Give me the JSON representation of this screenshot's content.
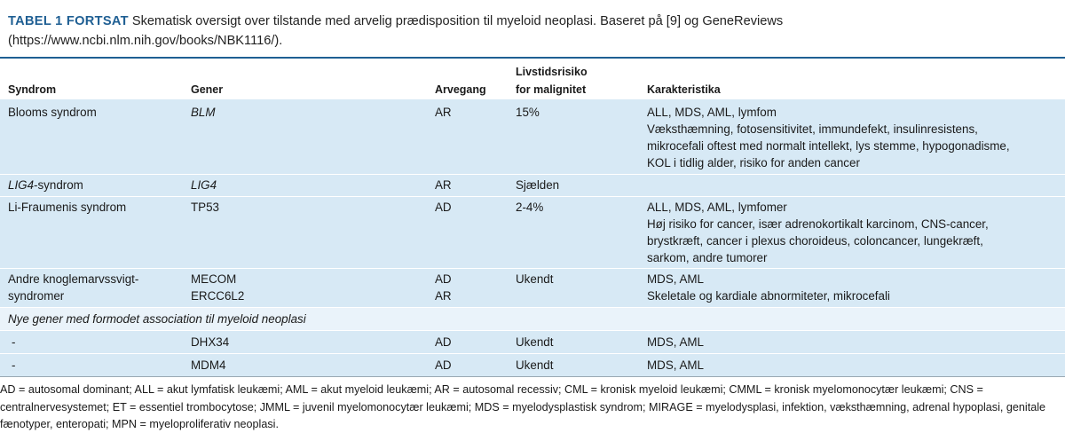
{
  "caption": {
    "tag": "TABEL 1 FORTSAT",
    "text": " Skematisk oversigt over tilstande med arvelig prædisposition til myeloid neoplasi. Baseret på [9] og GeneReviews (https://www.ncbi.nlm.nih.gov/books/NBK1116/)."
  },
  "headers": {
    "syndrom": "Syndrom",
    "gener": "Gener",
    "arvegang": "Arvegang",
    "risiko_line1": "Livstidsrisiko",
    "risiko_line2": "for malignitet",
    "karakteristika": "Karakteristika"
  },
  "rows": {
    "blooms": {
      "syndrom": "Blooms syndrom",
      "gener": "BLM",
      "arvegang": "AR",
      "risiko": "15%",
      "kar": [
        "ALL, MDS, AML, lymfom",
        "Væksthæmning, fotosensitivitet, immundefekt, insulinresistens,",
        "mikrocefali oftest med normalt intellekt, lys stemme, hypogonadisme,",
        "KOL i tidlig alder, risiko for anden cancer"
      ]
    },
    "lig4": {
      "syndrom_italic": "LIG4",
      "syndrom_rest": "-syndrom",
      "gener": "LIG4",
      "arvegang": "AR",
      "risiko": "Sjælden"
    },
    "lifraumeni": {
      "syndrom": "Li-Fraumenis syndrom",
      "gener": "TP53",
      "arvegang": "AD",
      "risiko": "2-4%",
      "kar": [
        "ALL, MDS, AML, lymfomer",
        "Høj risiko for cancer, især adrenokortikalt karcinom, CNS-cancer,",
        "brystkræft, cancer i plexus choroideus, coloncancer, lungekræft,",
        "sarkom, andre tumorer"
      ]
    },
    "andre": {
      "syndrom_line1": "Andre knoglemarvssvigt-",
      "syndrom_line2": "syndromer",
      "gener1": "MECOM",
      "gener2": "ERCC6L2",
      "arvegang1": "AD",
      "arvegang2": "AR",
      "risiko": "Ukendt",
      "kar1": "MDS, AML",
      "kar2": "Skeletale og kardiale abnormiteter, mikrocefali"
    },
    "section": "Nye gener med formodet association til myeloid neoplasi",
    "dhx34": {
      "syndrom": "-",
      "gener": "DHX34",
      "arvegang": "AD",
      "risiko": "Ukendt",
      "kar": "MDS, AML"
    },
    "mdm4": {
      "syndrom": "-",
      "gener": "MDM4",
      "arvegang": "AD",
      "risiko": "Ukendt",
      "kar": "MDS, AML"
    }
  },
  "footnote": "AD = autosomal dominant; ALL = akut lymfatisk leukæmi; AML = akut myeloid leukæmi; AR = autosomal recessiv; CML = kronisk myeloid leukæmi; CMML = kronisk myelomonocytær leukæmi; CNS = centralnervesystemet; ET = essentiel trombocytose; JMML = juvenil myelomonocytær leukæmi; MDS = myelodysplastisk syndrom; MIRAGE = myelodysplasi, infektion, væksthæmning, adrenal hypoplasi, genitale fænotyper, enteropati; MPN = myeloproliferativ neoplasi.",
  "colors": {
    "accent": "#1f5f93",
    "row_band": "#d7e9f5",
    "section_band": "#eaf3fa"
  }
}
